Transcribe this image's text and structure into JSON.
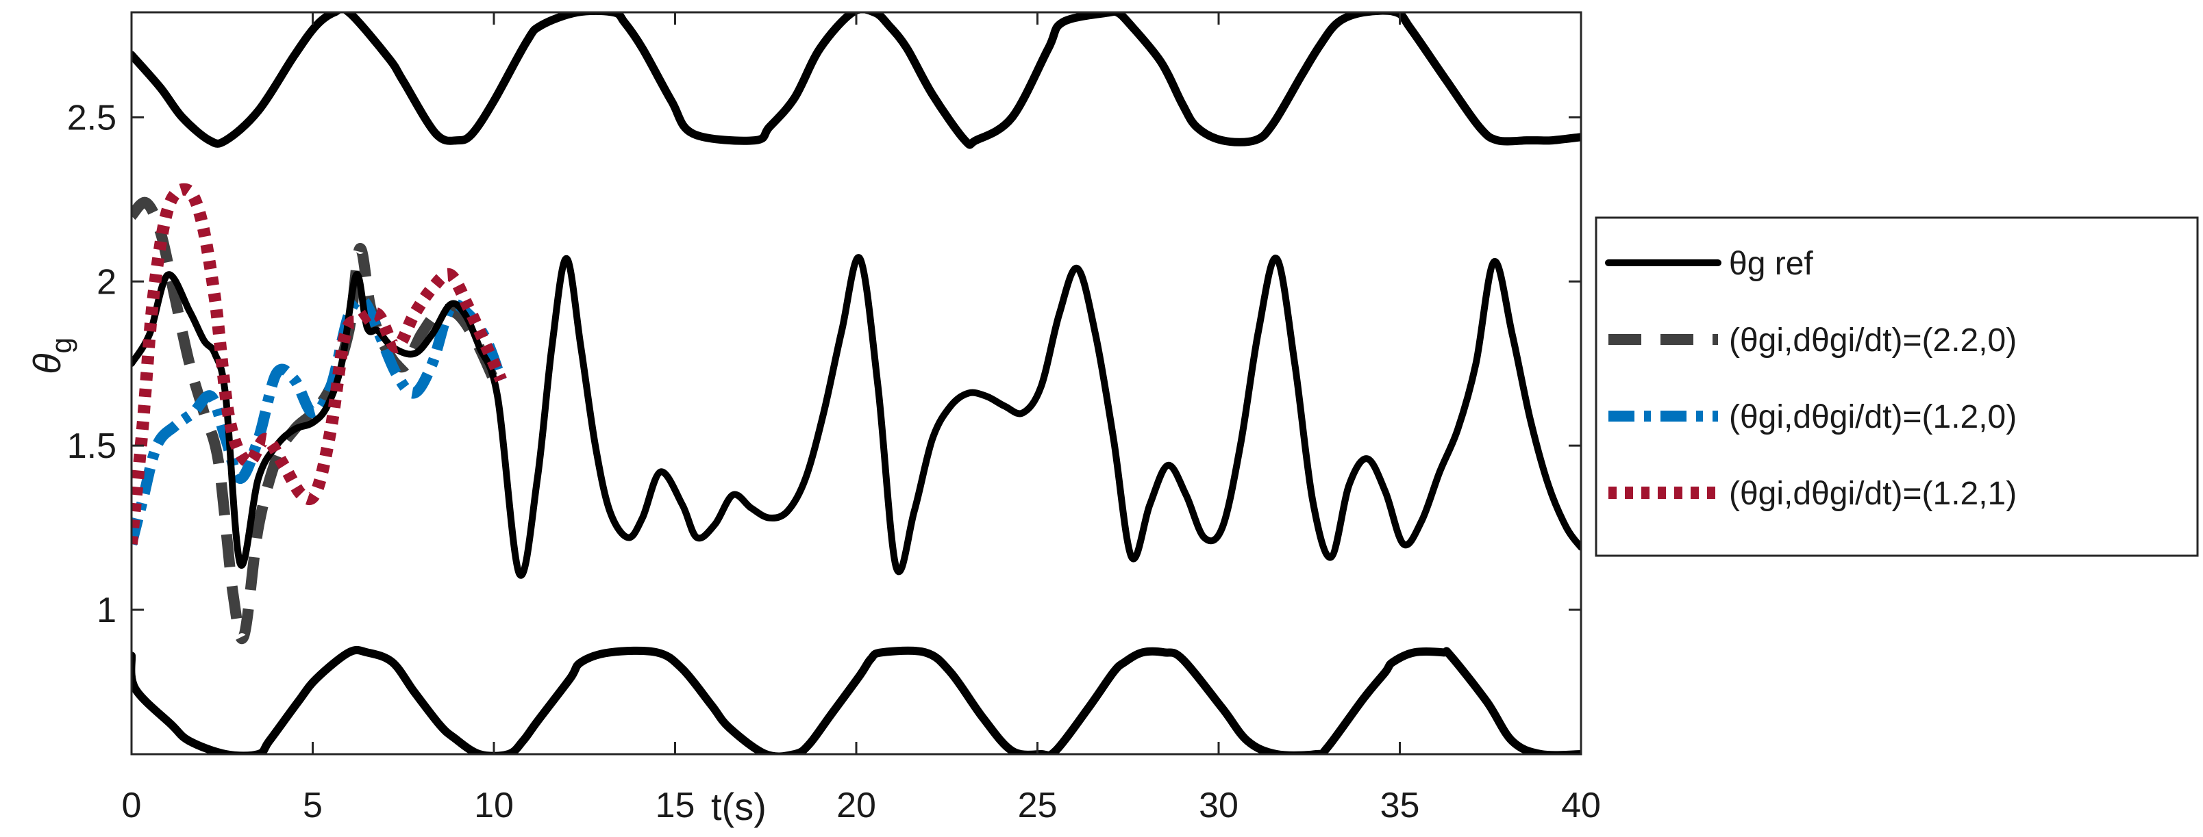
{
  "chart_data": {
    "type": "line",
    "title": "",
    "xlabel": "t(s)",
    "ylabel": "θ",
    "ylabel_sub": "g",
    "xlim": [
      0,
      40
    ],
    "ylim": [
      0.56,
      2.82
    ],
    "xticks": [
      "0",
      "5",
      "10",
      "15",
      "20",
      "25",
      "30",
      "35",
      "40"
    ],
    "yticks": [
      "1",
      "1.5",
      "2",
      "2.5"
    ],
    "grid": false,
    "legend_position": "right",
    "bounds": {
      "upper": {
        "color": "#000000",
        "style": "solid",
        "x": [
          0,
          0.8,
          1.4,
          2.15,
          2.6,
          3.5,
          4.5,
          5.1,
          5.6,
          6,
          7.1,
          7.5,
          8.4,
          9,
          9.4,
          10,
          10.9,
          11.3,
          12.3,
          13.3,
          13.6,
          14.1,
          14.9,
          15.5,
          17.2,
          17.6,
          18.3,
          19,
          19.9,
          20.5,
          20.9,
          21.4,
          22.1,
          23,
          23.3,
          24.3,
          25.3,
          25.7,
          27,
          27.2,
          27.5,
          28.4,
          29,
          29.4,
          30.1,
          31,
          31.5,
          32.3,
          32.8,
          33.3,
          34,
          34.9,
          35.3,
          36.3,
          37.2,
          37.7,
          38.5,
          38.8,
          39.2,
          40
        ],
        "y": [
          2.69,
          2.59,
          2.5,
          2.43,
          2.43,
          2.52,
          2.69,
          2.78,
          2.82,
          2.82,
          2.68,
          2.61,
          2.45,
          2.43,
          2.45,
          2.55,
          2.73,
          2.78,
          2.82,
          2.82,
          2.79,
          2.71,
          2.55,
          2.45,
          2.43,
          2.47,
          2.56,
          2.71,
          2.82,
          2.82,
          2.78,
          2.71,
          2.57,
          2.43,
          2.43,
          2.5,
          2.71,
          2.79,
          2.82,
          2.82,
          2.79,
          2.67,
          2.54,
          2.47,
          2.43,
          2.43,
          2.48,
          2.63,
          2.72,
          2.79,
          2.82,
          2.82,
          2.77,
          2.61,
          2.47,
          2.43,
          2.43,
          2.43,
          2.43,
          2.44
        ]
      },
      "lower": {
        "color": "#000000",
        "style": "solid",
        "x": [
          0,
          0.1,
          1.1,
          1.6,
          2.6,
          3.5,
          3.8,
          4.6,
          5.1,
          6,
          6.5,
          7.2,
          7.8,
          8.5,
          8.9,
          9.6,
          10.4,
          10.8,
          11.2,
          12.1,
          12.4,
          13.2,
          14.5,
          15.2,
          16,
          16.5,
          17.5,
          18.3,
          18.7,
          19.3,
          20.1,
          20.4,
          20.7,
          21.9,
          22.6,
          23.5,
          24.3,
          25.1,
          25.5,
          26.4,
          27.1,
          27.4,
          27.9,
          28.5,
          29,
          30.1,
          30.8,
          31.6,
          32.7,
          33,
          34,
          34.6,
          34.8,
          35.4,
          36.2,
          36.4,
          37.4,
          38.1,
          38.9,
          40
        ],
        "y": [
          0.86,
          0.76,
          0.65,
          0.6,
          0.56,
          0.56,
          0.6,
          0.72,
          0.79,
          0.87,
          0.87,
          0.84,
          0.75,
          0.65,
          0.61,
          0.56,
          0.56,
          0.6,
          0.66,
          0.79,
          0.84,
          0.87,
          0.87,
          0.82,
          0.71,
          0.64,
          0.56,
          0.56,
          0.59,
          0.68,
          0.8,
          0.85,
          0.87,
          0.87,
          0.81,
          0.67,
          0.57,
          0.56,
          0.57,
          0.7,
          0.81,
          0.84,
          0.87,
          0.87,
          0.85,
          0.7,
          0.6,
          0.56,
          0.56,
          0.58,
          0.73,
          0.81,
          0.84,
          0.87,
          0.87,
          0.86,
          0.72,
          0.6,
          0.56,
          0.56
        ]
      }
    },
    "series": [
      {
        "name": "θg ref",
        "color": "#000000",
        "style": "solid",
        "x": [
          0,
          0.5,
          1,
          1.6,
          2,
          2.3,
          2.6,
          3,
          3.5,
          4,
          4.5,
          5,
          5.4,
          5.8,
          6.2,
          6.5,
          6.8,
          7.2,
          7.8,
          8.3,
          8.8,
          9.2,
          9.6,
          10.1,
          10.7,
          11.2,
          11.6,
          12,
          12.4,
          12.8,
          13.2,
          13.7,
          14.1,
          14.6,
          15.2,
          15.6,
          16.1,
          16.6,
          17.1,
          17.6,
          18.1,
          18.6,
          19.1,
          19.6,
          20.1,
          20.6,
          21.1,
          21.6,
          22.1,
          22.6,
          23.1,
          23.6,
          24.1,
          24.6,
          25.1,
          25.6,
          26.1,
          26.6,
          27.1,
          27.6,
          28.1,
          28.6,
          29.1,
          29.6,
          30.1,
          30.6,
          31.1,
          31.6,
          32.1,
          32.6,
          33.1,
          33.6,
          34.1,
          34.6,
          35.1,
          35.6,
          36.1,
          36.6,
          37.1,
          37.6,
          38.1,
          38.6,
          39.1,
          39.6,
          40
        ],
        "y": [
          1.75,
          1.84,
          2.02,
          1.91,
          1.82,
          1.78,
          1.65,
          1.14,
          1.4,
          1.5,
          1.55,
          1.57,
          1.62,
          1.75,
          2.02,
          1.86,
          1.85,
          1.8,
          1.78,
          1.84,
          1.93,
          1.9,
          1.8,
          1.65,
          1.11,
          1.4,
          1.8,
          2.07,
          1.8,
          1.5,
          1.3,
          1.22,
          1.28,
          1.42,
          1.32,
          1.22,
          1.26,
          1.35,
          1.31,
          1.28,
          1.3,
          1.4,
          1.6,
          1.85,
          2.07,
          1.68,
          1.13,
          1.3,
          1.52,
          1.62,
          1.66,
          1.65,
          1.62,
          1.6,
          1.68,
          1.9,
          2.04,
          1.84,
          1.52,
          1.16,
          1.32,
          1.44,
          1.35,
          1.22,
          1.25,
          1.5,
          1.85,
          2.07,
          1.75,
          1.33,
          1.16,
          1.38,
          1.46,
          1.36,
          1.2,
          1.27,
          1.42,
          1.55,
          1.75,
          2.06,
          1.84,
          1.58,
          1.38,
          1.25,
          1.19
        ]
      },
      {
        "name": "(θgi,dθgi/dt)=(2.2,0)",
        "color": "#404040",
        "style": "dash",
        "x": [
          0,
          0.4,
          0.8,
          1.2,
          1.6,
          2,
          2.4,
          2.8,
          3.1,
          3.5,
          4,
          4.5,
          5,
          5.5,
          6,
          6.3,
          6.6,
          7,
          7.5,
          8,
          8.5,
          9,
          9.5,
          10
        ],
        "y": [
          2.2,
          2.24,
          2.15,
          1.95,
          1.75,
          1.6,
          1.45,
          1.05,
          0.92,
          1.25,
          1.46,
          1.55,
          1.6,
          1.68,
          1.85,
          2.1,
          1.92,
          1.8,
          1.74,
          1.84,
          1.91,
          1.9,
          1.82,
          1.7
        ]
      },
      {
        "name": "(θgi,dθgi/dt)=(1.2,0)",
        "color": "#0072BD",
        "style": "dashdot",
        "x": [
          0,
          0.3,
          0.7,
          1.2,
          1.7,
          2.2,
          2.6,
          3,
          3.5,
          4,
          4.5,
          5,
          5.5,
          6,
          6.4,
          6.8,
          7.3,
          7.8,
          8.3,
          8.8,
          9.3,
          9.8,
          10.2
        ],
        "y": [
          1.2,
          1.33,
          1.5,
          1.56,
          1.6,
          1.65,
          1.52,
          1.4,
          1.52,
          1.72,
          1.7,
          1.6,
          1.68,
          1.9,
          1.94,
          1.85,
          1.72,
          1.66,
          1.75,
          1.92,
          1.9,
          1.82,
          1.7
        ]
      },
      {
        "name": "(θgi,dθgi/dt)=(1.2,1)",
        "color": "#A2142F",
        "style": "dot",
        "x": [
          0,
          0.3,
          0.6,
          1,
          1.5,
          1.9,
          2.3,
          2.7,
          3.2,
          3.7,
          4.2,
          4.7,
          5.1,
          5.5,
          5.9,
          6.3,
          6.8,
          7.3,
          7.8,
          8.3,
          8.8,
          9.3,
          9.8,
          10.2
        ],
        "y": [
          1.2,
          1.55,
          1.95,
          2.22,
          2.28,
          2.2,
          1.95,
          1.58,
          1.45,
          1.52,
          1.44,
          1.35,
          1.36,
          1.55,
          1.84,
          1.88,
          1.9,
          1.8,
          1.9,
          1.98,
          2.02,
          1.92,
          1.8,
          1.7
        ]
      }
    ]
  }
}
